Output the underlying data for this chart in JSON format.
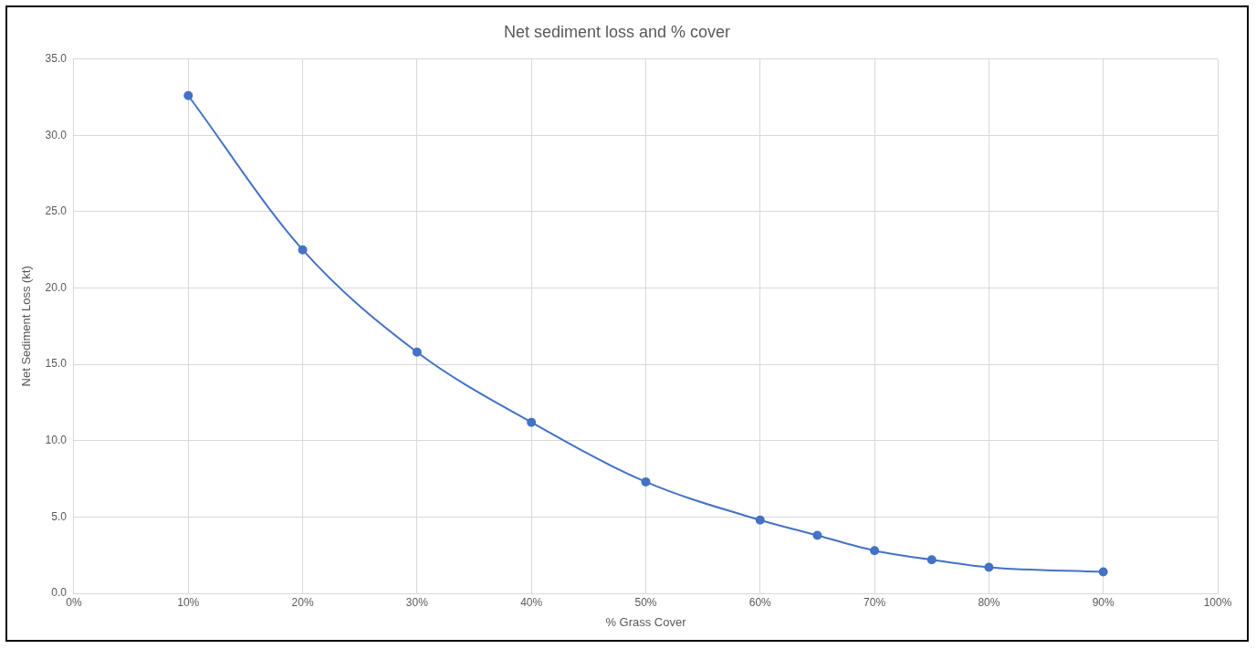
{
  "chart_data": {
    "type": "line",
    "title": "Net sediment loss and % cover",
    "xlabel": "% Grass Cover",
    "ylabel": "Net Sediment Loss (kt)",
    "x": [
      10,
      20,
      30,
      40,
      50,
      60,
      65,
      70,
      75,
      80,
      90
    ],
    "series": [
      {
        "color": "#4472c4",
        "values": [
          32.6,
          22.5,
          15.8,
          11.2,
          7.3,
          4.8,
          3.8,
          2.8,
          2.2,
          1.7,
          1.4
        ]
      }
    ],
    "xlim": [
      0,
      100
    ],
    "xticks": [
      {
        "value": 0,
        "label": "0%"
      },
      {
        "value": 10,
        "label": "10%"
      },
      {
        "value": 20,
        "label": "20%"
      },
      {
        "value": 30,
        "label": "30%"
      },
      {
        "value": 40,
        "label": "40%"
      },
      {
        "value": 50,
        "label": "50%"
      },
      {
        "value": 60,
        "label": "60%"
      },
      {
        "value": 70,
        "label": "70%"
      },
      {
        "value": 80,
        "label": "80%"
      },
      {
        "value": 90,
        "label": "90%"
      },
      {
        "value": 100,
        "label": "100%"
      }
    ],
    "ylim": [
      0,
      35
    ],
    "yticks": [
      {
        "value": 0,
        "label": "0.0"
      },
      {
        "value": 5,
        "label": "5.0"
      },
      {
        "value": 10,
        "label": "10.0"
      },
      {
        "value": 15,
        "label": "15.0"
      },
      {
        "value": 20,
        "label": "20.0"
      },
      {
        "value": 25,
        "label": "25.0"
      },
      {
        "value": 30,
        "label": "30.0"
      },
      {
        "value": 35,
        "label": "35.0"
      }
    ],
    "grid": true,
    "legend": false,
    "marker": "circle",
    "line_style": "solid"
  }
}
